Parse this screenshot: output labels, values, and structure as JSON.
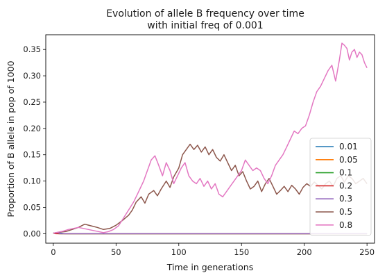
{
  "chart_data": {
    "type": "line",
    "title_line1": "Evolution of allele B frequency over time",
    "title_line2": "with initial freq of 0.001",
    "xlabel": "Time in generations",
    "ylabel": "Proportion of B allele in pop of 1000",
    "xlim": [
      -6,
      256
    ],
    "ylim": [
      -0.018,
      0.378
    ],
    "xticks": [
      0,
      50,
      100,
      150,
      200,
      250
    ],
    "yticks": [
      0.0,
      0.05,
      0.1,
      0.15,
      0.2,
      0.25,
      0.3,
      0.35
    ],
    "ytick_labels": [
      "0.00",
      "0.05",
      "0.10",
      "0.15",
      "0.20",
      "0.25",
      "0.30",
      "0.35"
    ],
    "legend_position": "lower-right",
    "series": [
      {
        "name": "0.01",
        "color": "#1f77b4",
        "points": [
          [
            0,
            0.001
          ],
          [
            3,
            0.002
          ],
          [
            6,
            0.001
          ],
          [
            9,
            0.0
          ],
          [
            250,
            0.0
          ]
        ]
      },
      {
        "name": "0.05",
        "color": "#ff7f0e",
        "points": [
          [
            0,
            0.001
          ],
          [
            4,
            0.0
          ],
          [
            250,
            0.0
          ]
        ]
      },
      {
        "name": "0.1",
        "color": "#2ca02c",
        "points": [
          [
            0,
            0.001
          ],
          [
            5,
            0.0
          ],
          [
            250,
            0.0
          ]
        ]
      },
      {
        "name": "0.2",
        "color": "#d62728",
        "points": [
          [
            0,
            0.001
          ],
          [
            2,
            0.0
          ],
          [
            250,
            0.0
          ]
        ]
      },
      {
        "name": "0.3",
        "color": "#9467bd",
        "points": [
          [
            0,
            0.001
          ],
          [
            3,
            0.002
          ],
          [
            6,
            0.0
          ],
          [
            250,
            0.0
          ]
        ]
      },
      {
        "name": "0.5",
        "color": "#8c564b",
        "points": [
          [
            0,
            0.001
          ],
          [
            5,
            0.003
          ],
          [
            10,
            0.004
          ],
          [
            15,
            0.008
          ],
          [
            20,
            0.012
          ],
          [
            25,
            0.018
          ],
          [
            30,
            0.015
          ],
          [
            35,
            0.012
          ],
          [
            40,
            0.008
          ],
          [
            45,
            0.01
          ],
          [
            50,
            0.016
          ],
          [
            55,
            0.025
          ],
          [
            60,
            0.035
          ],
          [
            63,
            0.045
          ],
          [
            66,
            0.06
          ],
          [
            70,
            0.07
          ],
          [
            73,
            0.058
          ],
          [
            76,
            0.075
          ],
          [
            80,
            0.082
          ],
          [
            83,
            0.072
          ],
          [
            86,
            0.085
          ],
          [
            90,
            0.1
          ],
          [
            93,
            0.088
          ],
          [
            96,
            0.108
          ],
          [
            100,
            0.125
          ],
          [
            103,
            0.15
          ],
          [
            106,
            0.16
          ],
          [
            109,
            0.17
          ],
          [
            112,
            0.16
          ],
          [
            115,
            0.168
          ],
          [
            118,
            0.155
          ],
          [
            121,
            0.165
          ],
          [
            124,
            0.15
          ],
          [
            127,
            0.16
          ],
          [
            130,
            0.145
          ],
          [
            133,
            0.138
          ],
          [
            136,
            0.15
          ],
          [
            139,
            0.135
          ],
          [
            142,
            0.12
          ],
          [
            145,
            0.13
          ],
          [
            148,
            0.11
          ],
          [
            151,
            0.118
          ],
          [
            154,
            0.1
          ],
          [
            157,
            0.085
          ],
          [
            160,
            0.09
          ],
          [
            163,
            0.1
          ],
          [
            166,
            0.08
          ],
          [
            169,
            0.095
          ],
          [
            172,
            0.105
          ],
          [
            175,
            0.09
          ],
          [
            178,
            0.075
          ],
          [
            181,
            0.082
          ],
          [
            184,
            0.09
          ],
          [
            187,
            0.08
          ],
          [
            190,
            0.092
          ],
          [
            193,
            0.085
          ],
          [
            196,
            0.075
          ],
          [
            199,
            0.088
          ],
          [
            202,
            0.095
          ],
          [
            205,
            0.09
          ],
          [
            208,
            0.098
          ],
          [
            211,
            0.092
          ],
          [
            214,
            0.085
          ],
          [
            217,
            0.095
          ],
          [
            220,
            0.1
          ],
          [
            223,
            0.09
          ],
          [
            226,
            0.105
          ],
          [
            229,
            0.11
          ],
          [
            232,
            0.098
          ],
          [
            235,
            0.11
          ],
          [
            238,
            0.105
          ],
          [
            241,
            0.095
          ],
          [
            244,
            0.1
          ],
          [
            247,
            0.105
          ],
          [
            250,
            0.095
          ]
        ]
      },
      {
        "name": "0.8",
        "color": "#e377c2",
        "points": [
          [
            0,
            0.001
          ],
          [
            4,
            0.003
          ],
          [
            8,
            0.005
          ],
          [
            12,
            0.008
          ],
          [
            16,
            0.01
          ],
          [
            20,
            0.012
          ],
          [
            24,
            0.01
          ],
          [
            28,
            0.008
          ],
          [
            32,
            0.006
          ],
          [
            36,
            0.004
          ],
          [
            40,
            0.002
          ],
          [
            44,
            0.004
          ],
          [
            48,
            0.008
          ],
          [
            52,
            0.015
          ],
          [
            56,
            0.03
          ],
          [
            60,
            0.045
          ],
          [
            64,
            0.06
          ],
          [
            68,
            0.08
          ],
          [
            72,
            0.1
          ],
          [
            75,
            0.12
          ],
          [
            78,
            0.14
          ],
          [
            81,
            0.148
          ],
          [
            84,
            0.13
          ],
          [
            87,
            0.11
          ],
          [
            90,
            0.135
          ],
          [
            93,
            0.12
          ],
          [
            96,
            0.095
          ],
          [
            99,
            0.11
          ],
          [
            102,
            0.125
          ],
          [
            105,
            0.135
          ],
          [
            108,
            0.11
          ],
          [
            111,
            0.1
          ],
          [
            114,
            0.095
          ],
          [
            117,
            0.105
          ],
          [
            120,
            0.09
          ],
          [
            123,
            0.1
          ],
          [
            126,
            0.085
          ],
          [
            129,
            0.095
          ],
          [
            132,
            0.075
          ],
          [
            135,
            0.07
          ],
          [
            138,
            0.08
          ],
          [
            141,
            0.09
          ],
          [
            144,
            0.1
          ],
          [
            147,
            0.11
          ],
          [
            150,
            0.12
          ],
          [
            153,
            0.14
          ],
          [
            156,
            0.13
          ],
          [
            159,
            0.12
          ],
          [
            162,
            0.125
          ],
          [
            165,
            0.12
          ],
          [
            168,
            0.105
          ],
          [
            171,
            0.095
          ],
          [
            174,
            0.11
          ],
          [
            177,
            0.13
          ],
          [
            180,
            0.14
          ],
          [
            183,
            0.15
          ],
          [
            186,
            0.165
          ],
          [
            189,
            0.18
          ],
          [
            192,
            0.195
          ],
          [
            195,
            0.19
          ],
          [
            198,
            0.2
          ],
          [
            201,
            0.205
          ],
          [
            204,
            0.225
          ],
          [
            207,
            0.25
          ],
          [
            210,
            0.27
          ],
          [
            213,
            0.28
          ],
          [
            216,
            0.295
          ],
          [
            219,
            0.31
          ],
          [
            222,
            0.32
          ],
          [
            225,
            0.29
          ],
          [
            228,
            0.33
          ],
          [
            230,
            0.362
          ],
          [
            232,
            0.358
          ],
          [
            234,
            0.352
          ],
          [
            236,
            0.33
          ],
          [
            238,
            0.345
          ],
          [
            240,
            0.35
          ],
          [
            242,
            0.335
          ],
          [
            244,
            0.345
          ],
          [
            246,
            0.34
          ],
          [
            248,
            0.325
          ],
          [
            250,
            0.315
          ]
        ]
      }
    ]
  }
}
